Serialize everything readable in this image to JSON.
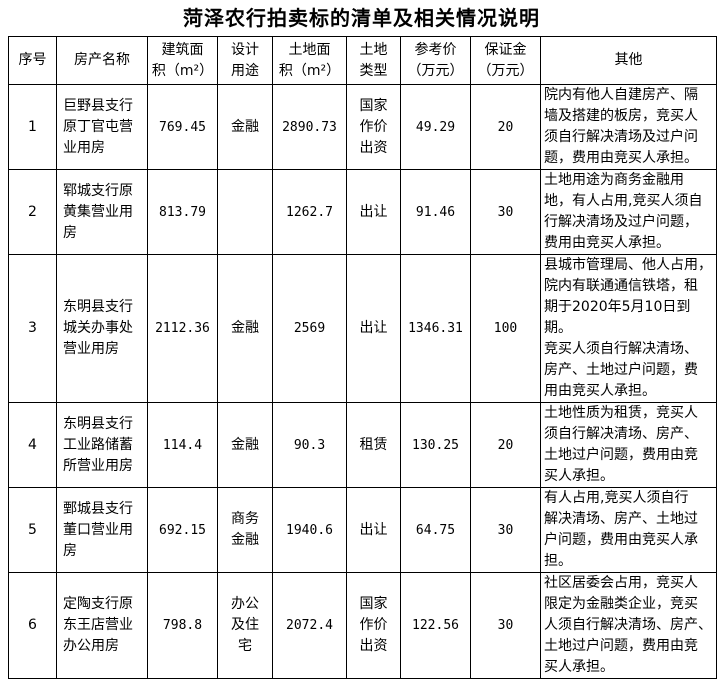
{
  "title": "菏泽农行拍卖标的清单及相关情况说明",
  "headers": [
    "序号",
    "房产名称",
    "建筑面\n积（m²）",
    "设计\n用途",
    "土地面\n积（m²）",
    "土地\n类型",
    "参考价\n（万元）",
    "保证金\n（万元）",
    "其他"
  ],
  "rows": [
    {
      "no": "1",
      "name": "巨野县支行\n原丁官屯营\n业用房",
      "building_area": "769.45",
      "use": "金融",
      "land_area": "2890.73",
      "land_type": "国家\n作价\n出资",
      "price": "49.29",
      "deposit": "20",
      "other": "院内有他人自建房产、隔\n墙及搭建的板房，竞买人\n须自行解决清场及过户问\n题，费用由竞买人承担。"
    },
    {
      "no": "2",
      "name": "郓城支行原\n黄集营业用\n房",
      "building_area": "813.79",
      "use": "",
      "land_area": "1262.7",
      "land_type": "出让",
      "price": "91.46",
      "deposit": "30",
      "other": "土地用途为商务金融用\n地，有人占用,竞买人须自\n行解决清场及过户问题，\n费用由竞买人承担。"
    },
    {
      "no": "3",
      "name": "东明县支行\n城关办事处\n营业用房",
      "building_area": "2112.36",
      "use": "金融",
      "land_area": "2569",
      "land_type": "出让",
      "price": "1346.31",
      "deposit": "100",
      "other": "县城市管理局、他人占用，\n院内有联通通信铁塔，租\n期于2020年5月10日到期。\n竞买人须自行解决清场、\n房产、土地过户问题，费\n用由竞买人承担。"
    },
    {
      "no": "4",
      "name": "东明县支行\n工业路储蓄\n所营业用房",
      "building_area": "114.4",
      "use": "金融",
      "land_area": "90.3",
      "land_type": "租赁",
      "price": "130.25",
      "deposit": "20",
      "other": "土地性质为租赁，竞买人\n须自行解决清场、房产、\n土地过户问题，费用由竞\n买人承担。"
    },
    {
      "no": "5",
      "name": "鄄城县支行\n董口营业用\n房",
      "building_area": "692.15",
      "use": "商务\n金融",
      "land_area": "1940.6",
      "land_type": "出让",
      "price": "64.75",
      "deposit": "30",
      "other": "有人占用,竞买人须自行\n解决清场、房产、土地过\n户问题，费用由竞买人承\n担。"
    },
    {
      "no": "6",
      "name": "定陶支行原\n东王店营业\n办公用房",
      "building_area": "798.8",
      "use": "办公\n及住\n宅",
      "land_area": "2072.4",
      "land_type": "国家\n作价\n出资",
      "price": "122.56",
      "deposit": "30",
      "other": "社区居委会占用，竞买人\n限定为金融类企业，竞买\n人须自行解决清场、房产、\n土地过户问题，费用由竞\n买人承担。"
    }
  ]
}
